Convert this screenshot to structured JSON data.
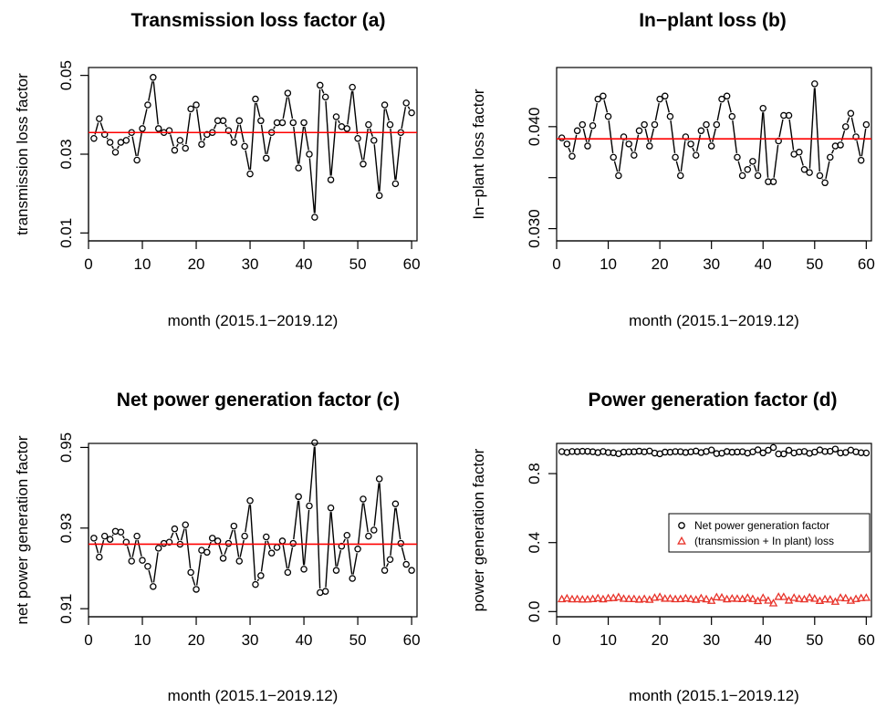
{
  "chart_data": [
    {
      "type": "line",
      "title": "Transmission loss factor (a)",
      "xlabel": "month (2015.1−2019.12)",
      "ylabel": "transmission loss factor",
      "xlim": [
        0,
        61
      ],
      "ylim": [
        0.008,
        0.052
      ],
      "xticks": [
        0,
        10,
        20,
        30,
        40,
        50,
        60
      ],
      "xtick_labels": [
        "0",
        "10",
        "20",
        "30",
        "40",
        "50",
        "60"
      ],
      "yticks": [
        0.01,
        0.03,
        0.05
      ],
      "ytick_labels": [
        "0.01",
        "0.03",
        "0.05"
      ],
      "reference_line": 0.0355,
      "reference_color": "#ff0000",
      "series": [
        {
          "marker": "circle",
          "color": "#000000",
          "x": [
            1,
            2,
            3,
            4,
            5,
            6,
            7,
            8,
            9,
            10,
            11,
            12,
            13,
            14,
            15,
            16,
            17,
            18,
            19,
            20,
            21,
            22,
            23,
            24,
            25,
            26,
            27,
            28,
            29,
            30,
            31,
            32,
            33,
            34,
            35,
            36,
            37,
            38,
            39,
            40,
            41,
            42,
            43,
            44,
            45,
            46,
            47,
            48,
            49,
            50,
            51,
            52,
            53,
            54,
            55,
            56,
            57,
            58,
            59,
            60
          ],
          "values": [
            0.034,
            0.039,
            0.035,
            0.033,
            0.0305,
            0.033,
            0.0335,
            0.0355,
            0.0285,
            0.0365,
            0.0425,
            0.0495,
            0.0365,
            0.0355,
            0.036,
            0.031,
            0.0335,
            0.0315,
            0.0415,
            0.0425,
            0.0325,
            0.035,
            0.0355,
            0.0385,
            0.0385,
            0.036,
            0.033,
            0.0385,
            0.032,
            0.025,
            0.044,
            0.0385,
            0.029,
            0.0355,
            0.038,
            0.038,
            0.0455,
            0.038,
            0.0265,
            0.038,
            0.03,
            0.014,
            0.0475,
            0.0445,
            0.0235,
            0.0395,
            0.037,
            0.0365,
            0.047,
            0.034,
            0.0275,
            0.0375,
            0.0335,
            0.0195,
            0.0425,
            0.0375,
            0.0225,
            0.0355,
            0.043,
            0.0405
          ]
        }
      ]
    },
    {
      "type": "line",
      "title": "In−plant loss (b)",
      "xlabel": "month (2015.1−2019.12)",
      "ylabel": "In−plant loss factor",
      "xlim": [
        0,
        61
      ],
      "ylim": [
        0.0288,
        0.0458
      ],
      "xticks": [
        0,
        10,
        20,
        30,
        40,
        50,
        60
      ],
      "xtick_labels": [
        "0",
        "10",
        "20",
        "30",
        "40",
        "50",
        "60"
      ],
      "yticks": [
        0.03,
        0.035,
        0.04
      ],
      "ytick_labels": [
        "0.030",
        "",
        "0.040"
      ],
      "reference_line": 0.0388,
      "reference_color": "#ff0000",
      "series": [
        {
          "marker": "circle",
          "color": "#000000",
          "x": [
            1,
            2,
            3,
            4,
            5,
            6,
            7,
            8,
            9,
            10,
            11,
            12,
            13,
            14,
            15,
            16,
            17,
            18,
            19,
            20,
            21,
            22,
            23,
            24,
            25,
            26,
            27,
            28,
            29,
            30,
            31,
            32,
            33,
            34,
            35,
            36,
            37,
            38,
            39,
            40,
            41,
            42,
            43,
            44,
            45,
            46,
            47,
            48,
            49,
            50,
            51,
            52,
            53,
            54,
            55,
            56,
            57,
            58,
            59,
            60
          ],
          "values": [
            0.0389,
            0.0383,
            0.0371,
            0.0396,
            0.0402,
            0.0381,
            0.0401,
            0.0427,
            0.043,
            0.041,
            0.037,
            0.0352,
            0.039,
            0.0383,
            0.0372,
            0.0396,
            0.0402,
            0.0381,
            0.0402,
            0.0427,
            0.043,
            0.041,
            0.037,
            0.0352,
            0.039,
            0.0383,
            0.0372,
            0.0396,
            0.0402,
            0.0381,
            0.0402,
            0.0427,
            0.043,
            0.041,
            0.037,
            0.0352,
            0.0358,
            0.0366,
            0.0352,
            0.0418,
            0.0346,
            0.0346,
            0.0386,
            0.0411,
            0.0411,
            0.0373,
            0.0375,
            0.0358,
            0.0355,
            0.0442,
            0.0352,
            0.0345,
            0.037,
            0.0381,
            0.0382,
            0.04,
            0.0413,
            0.039,
            0.0367,
            0.0402
          ]
        }
      ]
    },
    {
      "type": "line",
      "title": "Net power generation factor (c)",
      "xlabel": "month (2015.1−2019.12)",
      "ylabel": "net power generation factor",
      "xlim": [
        0,
        61
      ],
      "ylim": [
        0.908,
        0.951
      ],
      "xticks": [
        0,
        10,
        20,
        30,
        40,
        50,
        60
      ],
      "xtick_labels": [
        "0",
        "10",
        "20",
        "30",
        "40",
        "50",
        "60"
      ],
      "yticks": [
        0.91,
        0.93,
        0.95
      ],
      "ytick_labels": [
        "0.91",
        "0.93",
        "0.95"
      ],
      "reference_line": 0.926,
      "reference_color": "#ff0000",
      "series": [
        {
          "marker": "circle",
          "color": "#000000",
          "x": [
            1,
            2,
            3,
            4,
            5,
            6,
            7,
            8,
            9,
            10,
            11,
            12,
            13,
            14,
            15,
            16,
            17,
            18,
            19,
            20,
            21,
            22,
            23,
            24,
            25,
            26,
            27,
            28,
            29,
            30,
            31,
            32,
            33,
            34,
            35,
            36,
            37,
            38,
            39,
            40,
            41,
            42,
            43,
            44,
            45,
            46,
            47,
            48,
            49,
            50,
            51,
            52,
            53,
            54,
            55,
            56,
            57,
            58,
            59,
            60
          ],
          "values": [
            0.9275,
            0.9228,
            0.928,
            0.9272,
            0.9292,
            0.929,
            0.9265,
            0.9218,
            0.928,
            0.922,
            0.9205,
            0.9155,
            0.925,
            0.9262,
            0.9265,
            0.9298,
            0.926,
            0.9308,
            0.919,
            0.9148,
            0.9245,
            0.924,
            0.9275,
            0.9268,
            0.9225,
            0.9262,
            0.9305,
            0.9218,
            0.928,
            0.9368,
            0.916,
            0.9182,
            0.9278,
            0.9238,
            0.9252,
            0.9268,
            0.919,
            0.9262,
            0.9378,
            0.9198,
            0.9355,
            0.9512,
            0.914,
            0.9143,
            0.935,
            0.9195,
            0.9255,
            0.9282,
            0.9175,
            0.9248,
            0.9372,
            0.928,
            0.9295,
            0.9422,
            0.9195,
            0.9222,
            0.936,
            0.9262,
            0.921,
            0.9195
          ]
        }
      ]
    },
    {
      "type": "scatter",
      "title": "Power generation factor (d)",
      "xlabel": "month (2015.1−2019.12)",
      "ylabel": "power generation factor",
      "xlim": [
        0,
        61
      ],
      "ylim": [
        -0.03,
        0.975
      ],
      "xticks": [
        0,
        10,
        20,
        30,
        40,
        50,
        60
      ],
      "xtick_labels": [
        "0",
        "10",
        "20",
        "30",
        "40",
        "50",
        "60"
      ],
      "yticks": [
        0.0,
        0.4,
        0.8
      ],
      "ytick_labels": [
        "0.0",
        "0.4",
        "0.8"
      ],
      "legend_position": "right",
      "series": [
        {
          "name": "Net power generation factor",
          "marker": "circle",
          "color": "#000000",
          "x": [
            1,
            2,
            3,
            4,
            5,
            6,
            7,
            8,
            9,
            10,
            11,
            12,
            13,
            14,
            15,
            16,
            17,
            18,
            19,
            20,
            21,
            22,
            23,
            24,
            25,
            26,
            27,
            28,
            29,
            30,
            31,
            32,
            33,
            34,
            35,
            36,
            37,
            38,
            39,
            40,
            41,
            42,
            43,
            44,
            45,
            46,
            47,
            48,
            49,
            50,
            51,
            52,
            53,
            54,
            55,
            56,
            57,
            58,
            59,
            60
          ],
          "values": [
            0.9275,
            0.9228,
            0.928,
            0.9272,
            0.9292,
            0.929,
            0.9265,
            0.9218,
            0.928,
            0.922,
            0.9205,
            0.9155,
            0.925,
            0.9262,
            0.9265,
            0.9298,
            0.926,
            0.9308,
            0.919,
            0.9148,
            0.9245,
            0.924,
            0.9275,
            0.9268,
            0.9225,
            0.9262,
            0.9305,
            0.9218,
            0.928,
            0.9368,
            0.916,
            0.9182,
            0.9278,
            0.9238,
            0.9252,
            0.9268,
            0.919,
            0.9262,
            0.9378,
            0.9198,
            0.9355,
            0.9512,
            0.914,
            0.9143,
            0.935,
            0.9195,
            0.9255,
            0.9282,
            0.9175,
            0.9248,
            0.9372,
            0.928,
            0.9295,
            0.9422,
            0.9195,
            0.9222,
            0.936,
            0.9262,
            0.921,
            0.9195
          ]
        },
        {
          "name": "(transmission + In plant) loss",
          "marker": "triangle",
          "color": "#e8332a",
          "x": [
            1,
            2,
            3,
            4,
            5,
            6,
            7,
            8,
            9,
            10,
            11,
            12,
            13,
            14,
            15,
            16,
            17,
            18,
            19,
            20,
            21,
            22,
            23,
            24,
            25,
            26,
            27,
            28,
            29,
            30,
            31,
            32,
            33,
            34,
            35,
            36,
            37,
            38,
            39,
            40,
            41,
            42,
            43,
            44,
            45,
            46,
            47,
            48,
            49,
            50,
            51,
            52,
            53,
            54,
            55,
            56,
            57,
            58,
            59,
            60
          ],
          "values": [
            0.0725,
            0.0772,
            0.072,
            0.0728,
            0.0708,
            0.071,
            0.0735,
            0.0782,
            0.072,
            0.078,
            0.0795,
            0.0845,
            0.075,
            0.0738,
            0.0735,
            0.0702,
            0.074,
            0.0692,
            0.081,
            0.0852,
            0.0755,
            0.076,
            0.0725,
            0.0732,
            0.0775,
            0.0738,
            0.0695,
            0.0782,
            0.072,
            0.0632,
            0.084,
            0.0818,
            0.0722,
            0.0762,
            0.0748,
            0.0732,
            0.081,
            0.0738,
            0.0622,
            0.0802,
            0.0645,
            0.0488,
            0.086,
            0.0857,
            0.065,
            0.0805,
            0.0745,
            0.0718,
            0.0825,
            0.0752,
            0.0628,
            0.072,
            0.0705,
            0.0578,
            0.0805,
            0.0778,
            0.064,
            0.0738,
            0.079,
            0.0805
          ]
        }
      ]
    }
  ]
}
